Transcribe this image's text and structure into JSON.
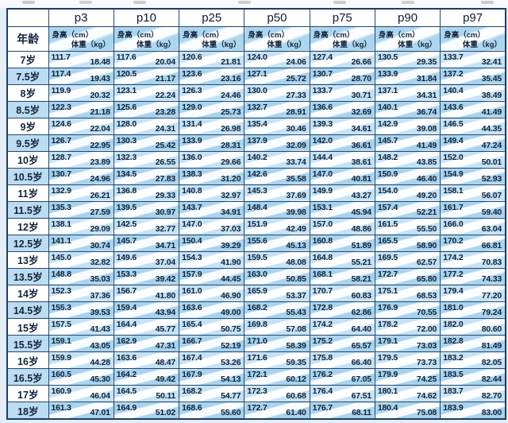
{
  "colors": {
    "border_navy": "#1e3c66",
    "grid_navy": "#234874",
    "row_light_blue": "#c4e2f4",
    "row_deep_blue": "#a8d3ec",
    "header_blue": "#abd6ee",
    "text_ink": "#10203a",
    "page_background": "#e3eef7"
  },
  "chart_data": {
    "type": "table",
    "corner_label": "年龄",
    "column_groups": [
      "p3",
      "p10",
      "p25",
      "p50",
      "p75",
      "p90",
      "p97"
    ],
    "subcolumns": [
      "身高（cm）",
      "体重（kg）"
    ],
    "rows": [
      {
        "age": "7岁",
        "values": [
          [
            "111.7",
            "18.48"
          ],
          [
            "117.6",
            "20.04"
          ],
          [
            "120.6",
            "21.81"
          ],
          [
            "124.0",
            "24.06"
          ],
          [
            "127.4",
            "26.66"
          ],
          [
            "130.5",
            "29.35"
          ],
          [
            "133.7",
            "32.41"
          ]
        ]
      },
      {
        "age": "7.5岁",
        "values": [
          [
            "117.4",
            "19.43"
          ],
          [
            "120.5",
            "21.17"
          ],
          [
            "123.6",
            "23.16"
          ],
          [
            "127.1",
            "25.72"
          ],
          [
            "130.7",
            "28.70"
          ],
          [
            "133.9",
            "31.84"
          ],
          [
            "137.2",
            "35.45"
          ]
        ]
      },
      {
        "age": "8岁",
        "values": [
          [
            "119.9",
            "20.32"
          ],
          [
            "123.1",
            "22.24"
          ],
          [
            "126.3",
            "24.46"
          ],
          [
            "130.0",
            "27.33"
          ],
          [
            "133.7",
            "30.71"
          ],
          [
            "137.1",
            "34.31"
          ],
          [
            "140.4",
            "38.49"
          ]
        ]
      },
      {
        "age": "8.5岁",
        "values": [
          [
            "122.3",
            "21.18"
          ],
          [
            "125.6",
            "23.28"
          ],
          [
            "129.0",
            "25.73"
          ],
          [
            "132.7",
            "28.91"
          ],
          [
            "136.6",
            "32.69"
          ],
          [
            "140.1",
            "36.74"
          ],
          [
            "143.6",
            "41.49"
          ]
        ]
      },
      {
        "age": "9岁",
        "values": [
          [
            "124.6",
            "22.04"
          ],
          [
            "128.0",
            "24.31"
          ],
          [
            "131.4",
            "26.98"
          ],
          [
            "135.4",
            "30.46"
          ],
          [
            "139.3",
            "34.61"
          ],
          [
            "142.9",
            "39.08"
          ],
          [
            "146.5",
            "44.35"
          ]
        ]
      },
      {
        "age": "9.5岁",
        "values": [
          [
            "126.7",
            "22.95"
          ],
          [
            "130.3",
            "25.42"
          ],
          [
            "133.9",
            "28.31"
          ],
          [
            "137.9",
            "32.09"
          ],
          [
            "142.0",
            "36.61"
          ],
          [
            "145.7",
            "41.49"
          ],
          [
            "149.4",
            "47.24"
          ]
        ]
      },
      {
        "age": "10岁",
        "values": [
          [
            "128.7",
            "23.89"
          ],
          [
            "132.3",
            "26.55"
          ],
          [
            "136.0",
            "29.66"
          ],
          [
            "140.2",
            "33.74"
          ],
          [
            "144.4",
            "38.61"
          ],
          [
            "148.2",
            "43.85"
          ],
          [
            "152.0",
            "50.01"
          ]
        ]
      },
      {
        "age": "10.5岁",
        "values": [
          [
            "130.7",
            "24.96"
          ],
          [
            "134.5",
            "27.83"
          ],
          [
            "138.3",
            "31.20"
          ],
          [
            "142.6",
            "35.58"
          ],
          [
            "147.0",
            "40.81"
          ],
          [
            "150.9",
            "46.40"
          ],
          [
            "154.9",
            "52.93"
          ]
        ]
      },
      {
        "age": "11岁",
        "values": [
          [
            "132.9",
            "26.21"
          ],
          [
            "136.8",
            "29.33"
          ],
          [
            "140.8",
            "32.97"
          ],
          [
            "145.3",
            "37.69"
          ],
          [
            "149.9",
            "43.27"
          ],
          [
            "154.0",
            "49.20"
          ],
          [
            "158.1",
            "56.07"
          ]
        ]
      },
      {
        "age": "11.5岁",
        "values": [
          [
            "135.3",
            "27.59"
          ],
          [
            "139.5",
            "30.97"
          ],
          [
            "143.7",
            "34.91"
          ],
          [
            "148.4",
            "39.98"
          ],
          [
            "153.1",
            "45.94"
          ],
          [
            "157.4",
            "52.21"
          ],
          [
            "161.7",
            "59.40"
          ]
        ]
      },
      {
        "age": "12岁",
        "values": [
          [
            "138.1",
            "29.09"
          ],
          [
            "142.5",
            "32.77"
          ],
          [
            "147.0",
            "37.03"
          ],
          [
            "151.9",
            "42.49"
          ],
          [
            "157.0",
            "48.86"
          ],
          [
            "161.5",
            "55.50"
          ],
          [
            "166.0",
            "63.04"
          ]
        ]
      },
      {
        "age": "12.5岁",
        "values": [
          [
            "141.1",
            "30.74"
          ],
          [
            "145.7",
            "34.71"
          ],
          [
            "150.4",
            "39.29"
          ],
          [
            "155.6",
            "45.13"
          ],
          [
            "160.8",
            "51.89"
          ],
          [
            "165.5",
            "58.90"
          ],
          [
            "170.2",
            "66.81"
          ]
        ]
      },
      {
        "age": "13岁",
        "values": [
          [
            "145.0",
            "32.82"
          ],
          [
            "149.6",
            "37.04"
          ],
          [
            "154.3",
            "41.90"
          ],
          [
            "159.5",
            "48.08"
          ],
          [
            "164.8",
            "55.21"
          ],
          [
            "169.5",
            "62.57"
          ],
          [
            "174.2",
            "70.83"
          ]
        ]
      },
      {
        "age": "13.5岁",
        "values": [
          [
            "148.8",
            "35.03"
          ],
          [
            "153.3",
            "39.42"
          ],
          [
            "157.9",
            "44.45"
          ],
          [
            "163.0",
            "50.85"
          ],
          [
            "168.1",
            "58.21"
          ],
          [
            "172.7",
            "65.80"
          ],
          [
            "177.2",
            "74.33"
          ]
        ]
      },
      {
        "age": "14岁",
        "values": [
          [
            "152.3",
            "37.36"
          ],
          [
            "156.7",
            "41.80"
          ],
          [
            "161.0",
            "46.90"
          ],
          [
            "165.9",
            "53.37"
          ],
          [
            "170.7",
            "60.83"
          ],
          [
            "175.1",
            "68.53"
          ],
          [
            "179.4",
            "77.20"
          ]
        ]
      },
      {
        "age": "14.5岁",
        "values": [
          [
            "155.3",
            "39.53"
          ],
          [
            "159.4",
            "43.94"
          ],
          [
            "163.6",
            "49.00"
          ],
          [
            "168.2",
            "55.43"
          ],
          [
            "172.8",
            "62.86"
          ],
          [
            "176.9",
            "70.55"
          ],
          [
            "181.0",
            "79.24"
          ]
        ]
      },
      {
        "age": "15岁",
        "values": [
          [
            "157.5",
            "41.43"
          ],
          [
            "164.4",
            "45.77"
          ],
          [
            "165.4",
            "50.75"
          ],
          [
            "169.8",
            "57.08"
          ],
          [
            "174.2",
            "64.40"
          ],
          [
            "178.2",
            "72.00"
          ],
          [
            "182.0",
            "80.60"
          ]
        ]
      },
      {
        "age": "15.5岁",
        "values": [
          [
            "159.1",
            "43.05"
          ],
          [
            "162.9",
            "47.31"
          ],
          [
            "166.7",
            "52.19"
          ],
          [
            "171.0",
            "58.39"
          ],
          [
            "175.2",
            "65.57"
          ],
          [
            "179.1",
            "73.03"
          ],
          [
            "182.8",
            "81.49"
          ]
        ]
      },
      {
        "age": "16岁",
        "values": [
          [
            "159.9",
            "44.28"
          ],
          [
            "163.6",
            "48.47"
          ],
          [
            "167.4",
            "53.26"
          ],
          [
            "171.6",
            "59.35"
          ],
          [
            "175.8",
            "66.40"
          ],
          [
            "179.5",
            "73.73"
          ],
          [
            "183.2",
            "82.05"
          ]
        ]
      },
      {
        "age": "16.5岁",
        "values": [
          [
            "160.5",
            "45.30"
          ],
          [
            "164.2",
            "49.42"
          ],
          [
            "167.9",
            "54.13"
          ],
          [
            "172.1",
            "60.12"
          ],
          [
            "176.2",
            "67.05"
          ],
          [
            "179.9",
            "74.25"
          ],
          [
            "183.5",
            "82.44"
          ]
        ]
      },
      {
        "age": "17岁",
        "values": [
          [
            "160.9",
            "46.04"
          ],
          [
            "164.5",
            "50.11"
          ],
          [
            "168.2",
            "54.77"
          ],
          [
            "172.3",
            "60.68"
          ],
          [
            "176.4",
            "67.51"
          ],
          [
            "180.1",
            "74.62"
          ],
          [
            "183.7",
            "82.70"
          ]
        ]
      },
      {
        "age": "18岁",
        "values": [
          [
            "161.3",
            "47.01"
          ],
          [
            "164.9",
            "51.02"
          ],
          [
            "168.6",
            "55.60"
          ],
          [
            "172.7",
            "61.40"
          ],
          [
            "176.7",
            "68.11"
          ],
          [
            "180.4",
            "75.08"
          ],
          [
            "183.9",
            "83.00"
          ]
        ]
      }
    ]
  }
}
